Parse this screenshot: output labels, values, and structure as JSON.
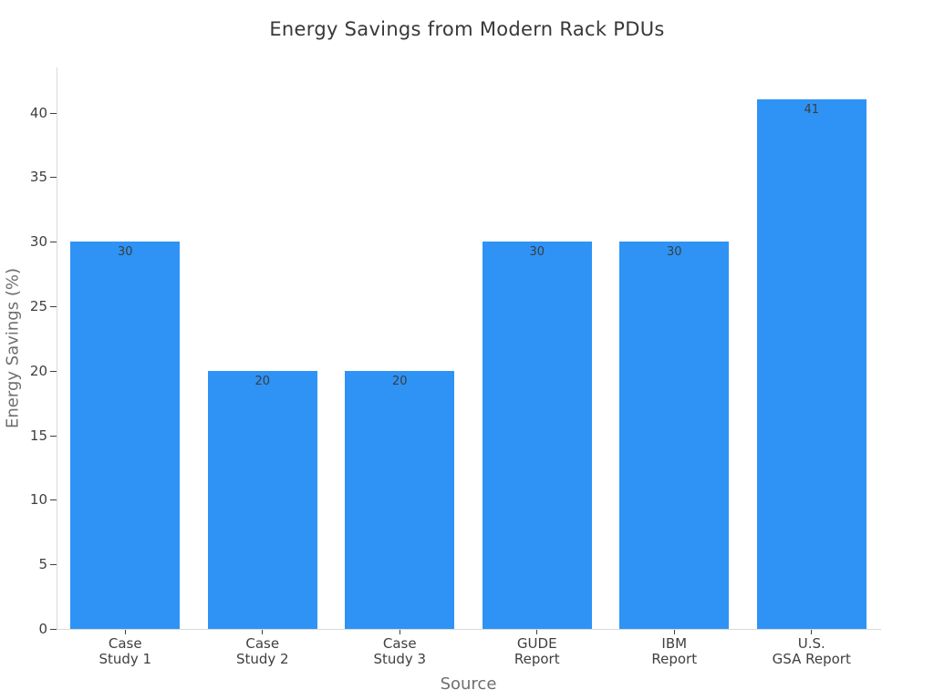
{
  "chart_data": {
    "type": "bar",
    "title": "Energy Savings from Modern Rack PDUs",
    "xlabel": "Source",
    "ylabel": "Energy Savings (%)",
    "categories": [
      "Case\nStudy 1",
      "Case\nStudy 2",
      "Case\nStudy 3",
      "GUDE\nReport",
      "IBM\nReport",
      "U.S.\nGSA Report"
    ],
    "values": [
      30,
      20,
      20,
      30,
      30,
      41
    ],
    "bar_value_labels": [
      "30",
      "20",
      "20",
      "30",
      "30",
      "41"
    ],
    "ylim": [
      0,
      43.5
    ],
    "yticks": [
      0,
      5,
      10,
      15,
      20,
      25,
      30,
      35,
      40
    ],
    "grid": false,
    "legend": false,
    "bar_width_fraction": 0.8,
    "colors": {
      "bar": "#2e93f5",
      "title_text": "#383838",
      "tick_text": "#3f3f3f",
      "axis_title_text": "#6f6f6f",
      "axis_line": "#d9d9d9",
      "bar_label_text": "#3d3d3d"
    }
  }
}
